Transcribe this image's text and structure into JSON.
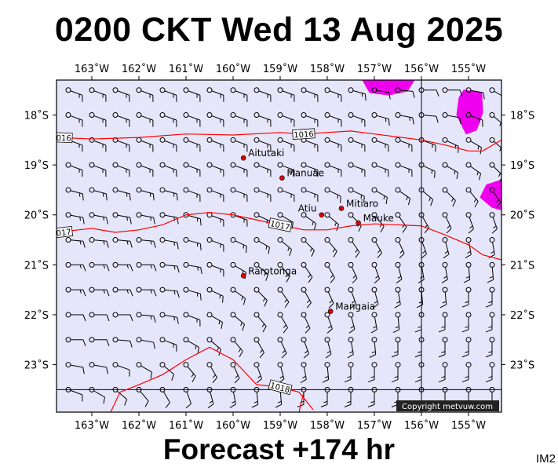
{
  "title": "0200 CKT Wed 13 Aug 2025",
  "footer": "Forecast +174 hr",
  "product_code": "IM2",
  "copyright": "Copyright metvuw.com",
  "colors": {
    "sea": "#e6e6fa",
    "isobar": "#ff0000",
    "rain": "#ee00ee",
    "town": "#dd0000",
    "barb": "#000000"
  },
  "map": {
    "lon_range": [
      -163.75,
      -154.3
    ],
    "lat_range": [
      -23.95,
      -17.3
    ],
    "lon_ticks": [
      {
        "lon": -163,
        "label": "163˚W"
      },
      {
        "lon": -162,
        "label": "162˚W"
      },
      {
        "lon": -161,
        "label": "161˚W"
      },
      {
        "lon": -160,
        "label": "160˚W"
      },
      {
        "lon": -159,
        "label": "159˚W"
      },
      {
        "lon": -158,
        "label": "158˚W"
      },
      {
        "lon": -157,
        "label": "157˚W"
      },
      {
        "lon": -156,
        "label": "156˚W"
      },
      {
        "lon": -155,
        "label": "155˚W"
      }
    ],
    "lat_ticks": [
      {
        "lat": -18,
        "label": "18˚S"
      },
      {
        "lat": -19,
        "label": "19˚S"
      },
      {
        "lat": -20,
        "label": "20˚S"
      },
      {
        "lat": -21,
        "label": "21˚S"
      },
      {
        "lat": -22,
        "label": "22˚S"
      },
      {
        "lat": -23,
        "label": "23˚S"
      }
    ],
    "reference_lines": {
      "lon": -156,
      "lat": -23.5
    }
  },
  "places": [
    {
      "name": "Aitutaki",
      "lon": -159.78,
      "lat": -18.86
    },
    {
      "name": "Manuae",
      "lon": -158.96,
      "lat": -19.26
    },
    {
      "name": "Mitiaro",
      "lon": -157.7,
      "lat": -19.87
    },
    {
      "name": "Atiu",
      "lon": -158.12,
      "lat": -20.0
    },
    {
      "name": "Mauke",
      "lon": -157.34,
      "lat": -20.16
    },
    {
      "name": "Rarotonga",
      "lon": -159.78,
      "lat": -21.22
    },
    {
      "name": "Mangaia",
      "lon": -157.93,
      "lat": -21.93
    }
  ],
  "isobars": [
    {
      "hpa": 1016,
      "label": "1016",
      "points": [
        [
          -163.75,
          -18.45
        ],
        [
          -163,
          -18.48
        ],
        [
          -162,
          -18.45
        ],
        [
          -161,
          -18.38
        ],
        [
          -160,
          -18.4
        ],
        [
          -159,
          -18.35
        ],
        [
          -158.5,
          -18.38
        ],
        [
          -157.5,
          -18.32
        ],
        [
          -157,
          -18.38
        ],
        [
          -156,
          -18.5
        ],
        [
          -155.5,
          -18.6
        ],
        [
          -155,
          -18.72
        ],
        [
          -154.7,
          -18.72
        ],
        [
          -154.3,
          -18.5
        ]
      ]
    },
    {
      "hpa": 1017,
      "label": "1017",
      "points": [
        [
          -163.75,
          -20.35
        ],
        [
          -163,
          -20.27
        ],
        [
          -162.5,
          -20.35
        ],
        [
          -162,
          -20.3
        ],
        [
          -161.5,
          -20.2
        ],
        [
          -161,
          -20.0
        ],
        [
          -160.5,
          -19.95
        ],
        [
          -160,
          -20.0
        ],
        [
          -159.5,
          -20.1
        ],
        [
          -159,
          -20.2
        ],
        [
          -158.5,
          -20.3
        ],
        [
          -158,
          -20.3
        ],
        [
          -157.5,
          -20.22
        ],
        [
          -157,
          -20.18
        ],
        [
          -156,
          -20.22
        ],
        [
          -155.5,
          -20.4
        ],
        [
          -155,
          -20.6
        ],
        [
          -154.7,
          -20.8
        ],
        [
          -154.3,
          -20.9
        ]
      ]
    },
    {
      "hpa": 1018,
      "label": "1018",
      "points": [
        [
          -162.6,
          -23.95
        ],
        [
          -162.4,
          -23.55
        ],
        [
          -162,
          -23.4
        ],
        [
          -161.5,
          -23.2
        ],
        [
          -161,
          -22.9
        ],
        [
          -160.5,
          -22.65
        ],
        [
          -160,
          -22.9
        ],
        [
          -159.5,
          -23.4
        ],
        [
          -159,
          -23.45
        ],
        [
          -158.6,
          -23.55
        ],
        [
          -158.3,
          -23.9
        ]
      ]
    },
    {
      "hpa": 1018,
      "label": "",
      "points": [
        [
          -158.6,
          -23.95
        ],
        [
          -158.55,
          -23.75
        ],
        [
          -158.5,
          -23.55
        ]
      ]
    }
  ],
  "rain_areas": [
    {
      "points": [
        [
          -157.25,
          -17.3
        ],
        [
          -157.1,
          -17.55
        ],
        [
          -156.7,
          -17.6
        ],
        [
          -156.3,
          -17.52
        ],
        [
          -156.15,
          -17.3
        ]
      ]
    },
    {
      "points": [
        [
          -155.1,
          -17.5
        ],
        [
          -154.72,
          -17.55
        ],
        [
          -154.7,
          -17.95
        ],
        [
          -154.83,
          -18.3
        ],
        [
          -155.05,
          -18.38
        ],
        [
          -155.25,
          -18.0
        ],
        [
          -155.2,
          -17.65
        ]
      ]
    },
    {
      "points": [
        [
          -154.3,
          -19.3
        ],
        [
          -154.62,
          -19.4
        ],
        [
          -154.75,
          -19.65
        ],
        [
          -154.5,
          -19.85
        ],
        [
          -154.3,
          -19.9
        ]
      ]
    }
  ],
  "wind_field": {
    "lons": [
      -163.5,
      -163,
      -162.5,
      -162,
      -161.5,
      -161,
      -160.5,
      -160,
      -159.5,
      -159,
      -158.5,
      -158,
      -157.5,
      -157,
      -156.5,
      -156,
      -155.5,
      -155,
      -154.5
    ],
    "lats": [
      -17.5,
      -18,
      -18.5,
      -19,
      -19.5,
      -20,
      -20.5,
      -21,
      -21.5,
      -22,
      -22.5,
      -23,
      -23.5
    ],
    "dir_from_deg": [
      [
        110,
        110,
        110,
        110,
        110,
        110,
        110,
        110,
        110,
        110,
        110,
        110,
        105,
        100,
        95,
        90,
        90,
        100,
        120
      ],
      [
        110,
        110,
        110,
        110,
        110,
        110,
        110,
        110,
        110,
        110,
        110,
        110,
        110,
        105,
        100,
        95,
        100,
        110,
        130
      ],
      [
        110,
        110,
        110,
        110,
        110,
        110,
        110,
        110,
        110,
        110,
        110,
        110,
        110,
        110,
        110,
        110,
        115,
        120,
        130
      ],
      [
        110,
        110,
        110,
        110,
        110,
        110,
        110,
        110,
        110,
        110,
        110,
        110,
        110,
        110,
        110,
        115,
        120,
        125,
        135
      ],
      [
        105,
        105,
        105,
        105,
        105,
        110,
        110,
        110,
        110,
        110,
        110,
        115,
        115,
        120,
        125,
        130,
        135,
        140,
        145
      ],
      [
        100,
        100,
        100,
        100,
        100,
        105,
        110,
        110,
        115,
        120,
        125,
        130,
        135,
        140,
        145,
        150,
        155,
        160,
        160
      ],
      [
        95,
        95,
        95,
        95,
        100,
        105,
        110,
        115,
        120,
        130,
        135,
        140,
        145,
        150,
        155,
        160,
        165,
        170,
        170
      ],
      [
        90,
        90,
        90,
        90,
        95,
        100,
        110,
        120,
        130,
        140,
        145,
        150,
        155,
        160,
        165,
        170,
        170,
        175,
        175
      ],
      [
        90,
        90,
        90,
        90,
        95,
        105,
        115,
        125,
        135,
        145,
        150,
        155,
        160,
        165,
        170,
        175,
        175,
        180,
        180
      ],
      [
        90,
        90,
        90,
        95,
        100,
        110,
        120,
        130,
        140,
        150,
        155,
        160,
        165,
        170,
        175,
        180,
        180,
        180,
        180
      ],
      [
        90,
        90,
        95,
        100,
        110,
        120,
        130,
        140,
        150,
        155,
        160,
        165,
        170,
        175,
        180,
        180,
        180,
        180,
        180
      ],
      [
        100,
        100,
        110,
        120,
        130,
        140,
        150,
        155,
        160,
        165,
        170,
        175,
        180,
        180,
        180,
        180,
        180,
        180,
        180
      ],
      [
        110,
        120,
        130,
        140,
        150,
        160,
        165,
        170,
        175,
        175,
        180,
        180,
        180,
        180,
        180,
        180,
        180,
        180,
        180
      ]
    ],
    "speed_kt": [
      [
        15,
        15,
        15,
        15,
        15,
        15,
        15,
        15,
        15,
        15,
        15,
        15,
        15,
        10,
        10,
        10,
        10,
        10,
        15
      ],
      [
        15,
        15,
        15,
        15,
        15,
        15,
        15,
        15,
        15,
        15,
        15,
        15,
        15,
        15,
        15,
        10,
        10,
        15,
        15
      ],
      [
        15,
        15,
        15,
        15,
        15,
        15,
        15,
        15,
        15,
        15,
        15,
        15,
        15,
        15,
        15,
        15,
        15,
        15,
        15
      ],
      [
        15,
        15,
        15,
        15,
        15,
        15,
        15,
        15,
        15,
        15,
        15,
        15,
        15,
        15,
        15,
        15,
        15,
        15,
        15
      ],
      [
        15,
        15,
        15,
        15,
        15,
        15,
        15,
        15,
        15,
        15,
        15,
        15,
        15,
        15,
        15,
        15,
        15,
        15,
        15
      ],
      [
        15,
        15,
        15,
        15,
        15,
        15,
        15,
        15,
        15,
        15,
        15,
        15,
        15,
        15,
        15,
        15,
        15,
        15,
        15
      ],
      [
        15,
        15,
        15,
        15,
        15,
        15,
        15,
        15,
        15,
        15,
        15,
        15,
        15,
        15,
        15,
        15,
        15,
        15,
        15
      ],
      [
        15,
        15,
        15,
        15,
        15,
        15,
        15,
        15,
        15,
        15,
        15,
        15,
        15,
        15,
        15,
        15,
        15,
        15,
        15
      ],
      [
        15,
        15,
        15,
        15,
        15,
        15,
        15,
        15,
        15,
        15,
        15,
        15,
        15,
        15,
        15,
        15,
        15,
        15,
        15
      ],
      [
        10,
        10,
        10,
        15,
        15,
        15,
        15,
        15,
        15,
        15,
        15,
        15,
        15,
        15,
        15,
        15,
        15,
        15,
        15
      ],
      [
        10,
        10,
        10,
        10,
        15,
        15,
        15,
        15,
        15,
        15,
        15,
        15,
        15,
        15,
        15,
        15,
        15,
        15,
        15
      ],
      [
        10,
        10,
        10,
        10,
        10,
        15,
        15,
        15,
        15,
        15,
        15,
        15,
        15,
        15,
        15,
        15,
        15,
        15,
        15
      ],
      [
        10,
        10,
        10,
        10,
        10,
        10,
        15,
        15,
        15,
        15,
        15,
        15,
        15,
        15,
        15,
        15,
        15,
        15,
        15
      ]
    ]
  }
}
